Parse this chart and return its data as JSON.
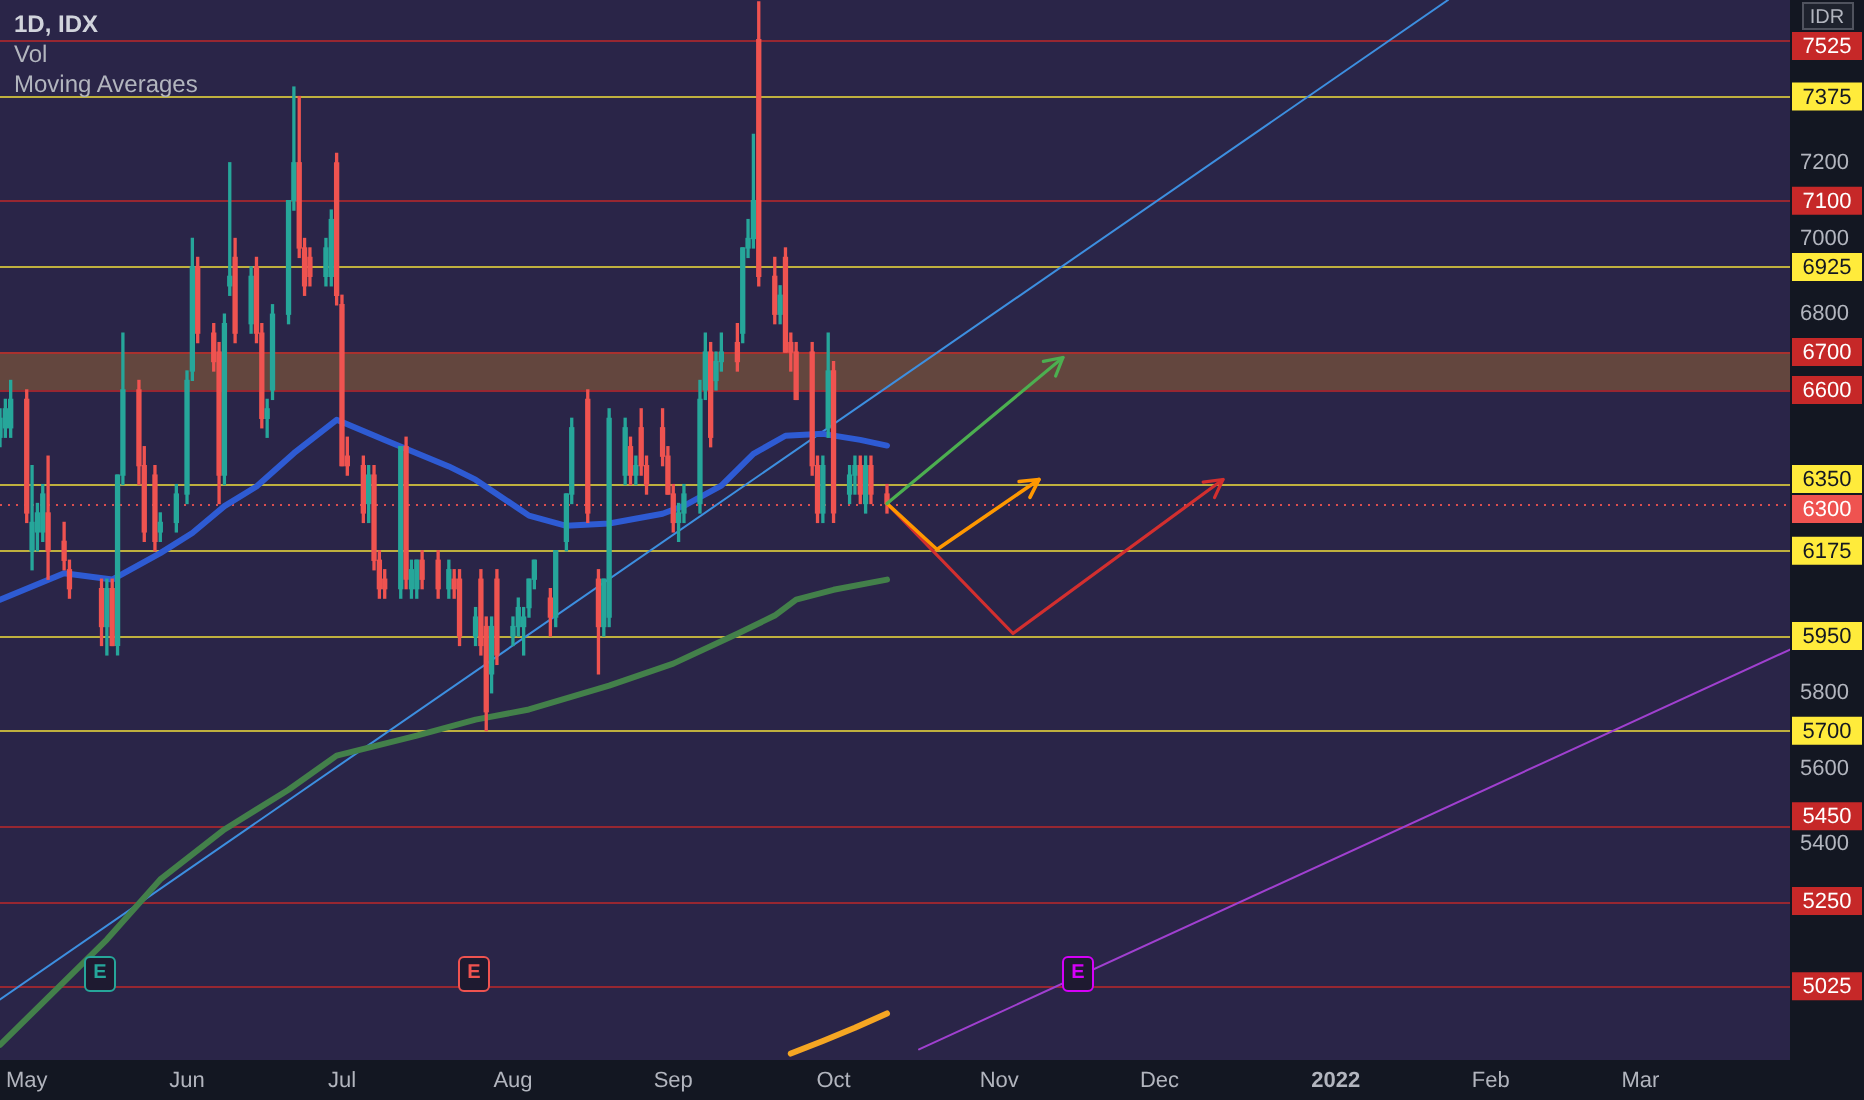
{
  "chart_data": {
    "type": "candlestick",
    "title": "1D, IDX",
    "ylabel": "IDR",
    "annotations": [
      "Vol",
      "Moving Averages",
      {
        "text": "E",
        "x": "2021-05-17"
      },
      {
        "text": "E",
        "x": "2021-07-26"
      },
      {
        "text": "E",
        "x": "2021-11-16"
      }
    ],
    "x": [
      "2021-04-28",
      "2021-04-29",
      "2021-04-30",
      "2021-05-03",
      "2021-05-04",
      "2021-05-05",
      "2021-05-06",
      "2021-05-07",
      "2021-05-10",
      "2021-05-11",
      "2021-05-17",
      "2021-05-18",
      "2021-05-19",
      "2021-05-20",
      "2021-05-21",
      "2021-05-24",
      "2021-05-25",
      "2021-05-27",
      "2021-05-28",
      "2021-05-31",
      "2021-06-02",
      "2021-06-03",
      "2021-06-04",
      "2021-06-07",
      "2021-06-08",
      "2021-06-09",
      "2021-06-10",
      "2021-06-11",
      "2021-06-14",
      "2021-06-15",
      "2021-06-16",
      "2021-06-17",
      "2021-06-18",
      "2021-06-21",
      "2021-06-22",
      "2021-06-23",
      "2021-06-24",
      "2021-06-25",
      "2021-06-28",
      "2021-06-29",
      "2021-06-30",
      "2021-07-01",
      "2021-07-02",
      "2021-07-05",
      "2021-07-06",
      "2021-07-07",
      "2021-07-08",
      "2021-07-09",
      "2021-07-12",
      "2021-07-13",
      "2021-07-14",
      "2021-07-15",
      "2021-07-16",
      "2021-07-19",
      "2021-07-21",
      "2021-07-22",
      "2021-07-23",
      "2021-07-26",
      "2021-07-27",
      "2021-07-28",
      "2021-07-29",
      "2021-07-30",
      "2021-08-02",
      "2021-08-03",
      "2021-08-04",
      "2021-08-05",
      "2021-08-06",
      "2021-08-09",
      "2021-08-10",
      "2021-08-12",
      "2021-08-13",
      "2021-08-16",
      "2021-08-18",
      "2021-08-19",
      "2021-08-20",
      "2021-08-23",
      "2021-08-24",
      "2021-08-25",
      "2021-08-26",
      "2021-08-27",
      "2021-08-30",
      "2021-08-31",
      "2021-09-01",
      "2021-09-02",
      "2021-09-03",
      "2021-09-06",
      "2021-09-07",
      "2021-09-08",
      "2021-09-09",
      "2021-09-10",
      "2021-09-13",
      "2021-09-14",
      "2021-09-15",
      "2021-09-16",
      "2021-09-17",
      "2021-09-20",
      "2021-09-21",
      "2021-09-22",
      "2021-09-23",
      "2021-09-24",
      "2021-09-27",
      "2021-09-28",
      "2021-09-29",
      "2021-09-30",
      "2021-10-01",
      "2021-10-04",
      "2021-10-05",
      "2021-10-06",
      "2021-10-07",
      "2021-10-08",
      "2021-10-11"
    ],
    "ohlc": [
      [
        6475,
        6550,
        6450,
        6525
      ],
      [
        6500,
        6575,
        6475,
        6550
      ],
      [
        6500,
        6625,
        6475,
        6575
      ],
      [
        6575,
        6600,
        6250,
        6275
      ],
      [
        6175,
        6400,
        6125,
        6250
      ],
      [
        6225,
        6300,
        6175,
        6275
      ],
      [
        6225,
        6350,
        6200,
        6325
      ],
      [
        6275,
        6425,
        6100,
        6175
      ],
      [
        6200,
        6250,
        6125,
        6150
      ],
      [
        6125,
        6150,
        6050,
        6075
      ],
      [
        6075,
        6100,
        5925,
        5975
      ],
      [
        5975,
        6100,
        5900,
        6075
      ],
      [
        6075,
        6100,
        5925,
        5925
      ],
      [
        5925,
        6375,
        5900,
        6375
      ],
      [
        6375,
        6750,
        6350,
        6600
      ],
      [
        6600,
        6625,
        6350,
        6400
      ],
      [
        6400,
        6450,
        6200,
        6225
      ],
      [
        6375,
        6400,
        6175,
        6200
      ],
      [
        6225,
        6275,
        6200,
        6250
      ],
      [
        6250,
        6350,
        6225,
        6325
      ],
      [
        6325,
        6650,
        6300,
        6625
      ],
      [
        6650,
        7000,
        6625,
        6925
      ],
      [
        6925,
        6950,
        6725,
        6750
      ],
      [
        6750,
        6775,
        6650,
        6675
      ],
      [
        6700,
        6725,
        6300,
        6375
      ],
      [
        6375,
        6800,
        6350,
        6775
      ],
      [
        6875,
        7200,
        6850,
        6900
      ],
      [
        6950,
        7000,
        6725,
        6750
      ],
      [
        6775,
        6925,
        6750,
        6900
      ],
      [
        6925,
        6950,
        6725,
        6750
      ],
      [
        6750,
        6775,
        6500,
        6525
      ],
      [
        6525,
        6575,
        6475,
        6550
      ],
      [
        6600,
        6825,
        6575,
        6800
      ],
      [
        6800,
        7100,
        6775,
        7100
      ],
      [
        7100,
        7400,
        7075,
        7200
      ],
      [
        7200,
        7375,
        6950,
        6975
      ],
      [
        6975,
        7000,
        6850,
        6875
      ],
      [
        6950,
        6975,
        6875,
        6900
      ],
      [
        6900,
        7000,
        6875,
        6975
      ],
      [
        6900,
        7075,
        6875,
        7050
      ],
      [
        7200,
        7225,
        6825,
        6850
      ],
      [
        6825,
        6850,
        6400,
        6400
      ],
      [
        6425,
        6475,
        6375,
        6400
      ],
      [
        6400,
        6425,
        6250,
        6275
      ],
      [
        6300,
        6400,
        6250,
        6375
      ],
      [
        6375,
        6400,
        6125,
        6150
      ],
      [
        6150,
        6175,
        6050,
        6075
      ],
      [
        6100,
        6125,
        6050,
        6075
      ],
      [
        6075,
        6450,
        6050,
        6450
      ],
      [
        6450,
        6475,
        6075,
        6100
      ],
      [
        6075,
        6150,
        6050,
        6125
      ],
      [
        6075,
        6150,
        6050,
        6150
      ],
      [
        6150,
        6175,
        6075,
        6100
      ],
      [
        6150,
        6175,
        6050,
        6075
      ],
      [
        6075,
        6150,
        6050,
        6125
      ],
      [
        6100,
        6125,
        6050,
        6075
      ],
      [
        6100,
        6125,
        5925,
        5950
      ],
      [
        5950,
        6025,
        5925,
        6000
      ],
      [
        6100,
        6125,
        5900,
        5925
      ],
      [
        5975,
        6000,
        5700,
        5750
      ],
      [
        5850,
        6000,
        5800,
        5975
      ],
      [
        6100,
        6125,
        5875,
        5900
      ],
      [
        5950,
        6000,
        5925,
        5975
      ],
      [
        5975,
        6050,
        5950,
        6025
      ],
      [
        5975,
        6025,
        5900,
        6000
      ],
      [
        6025,
        6100,
        6000,
        6100
      ],
      [
        6100,
        6150,
        6075,
        6150
      ],
      [
        6050,
        6075,
        5950,
        6000
      ],
      [
        6000,
        6175,
        5975,
        6175
      ],
      [
        6200,
        6325,
        6175,
        6325
      ],
      [
        6325,
        6525,
        6300,
        6500
      ],
      [
        6575,
        6600,
        6250,
        6275
      ],
      [
        6100,
        6125,
        5850,
        5975
      ],
      [
        5975,
        6100,
        5950,
        6100
      ],
      [
        6000,
        6550,
        5975,
        6525
      ],
      [
        6375,
        6525,
        6350,
        6500
      ],
      [
        6450,
        6475,
        6350,
        6375
      ],
      [
        6375,
        6425,
        6350,
        6400
      ],
      [
        6500,
        6550,
        6375,
        6400
      ],
      [
        6400,
        6425,
        6325,
        6350
      ],
      [
        6500,
        6550,
        6400,
        6425
      ],
      [
        6425,
        6450,
        6325,
        6325
      ],
      [
        6325,
        6350,
        6225,
        6250
      ],
      [
        6250,
        6300,
        6200,
        6275
      ],
      [
        6275,
        6350,
        6250,
        6325
      ],
      [
        6300,
        6625,
        6275,
        6575
      ],
      [
        6600,
        6750,
        6575,
        6700
      ],
      [
        6700,
        6725,
        6450,
        6475
      ],
      [
        6625,
        6700,
        6600,
        6675
      ],
      [
        6675,
        6750,
        6650,
        6700
      ],
      [
        6725,
        6775,
        6650,
        6675
      ],
      [
        6750,
        6975,
        6725,
        6975
      ],
      [
        6975,
        7050,
        6950,
        7000
      ],
      [
        7000,
        7275,
        6975,
        7100
      ],
      [
        7525,
        7625,
        6875,
        6900
      ],
      [
        6900,
        6950,
        6775,
        6800
      ],
      [
        6800,
        6875,
        6775,
        6850
      ],
      [
        6950,
        6975,
        6700,
        6700
      ],
      [
        6725,
        6750,
        6650,
        6700
      ],
      [
        6700,
        6725,
        6575,
        6575
      ],
      [
        6700,
        6725,
        6375,
        6400
      ],
      [
        6400,
        6425,
        6250,
        6275
      ],
      [
        6275,
        6425,
        6250,
        6400
      ],
      [
        6500,
        6750,
        6475,
        6650
      ],
      [
        6650,
        6675,
        6250,
        6275
      ],
      [
        6325,
        6400,
        6300,
        6375
      ],
      [
        6375,
        6425,
        6325,
        6400
      ],
      [
        6400,
        6425,
        6300,
        6325
      ],
      [
        6300,
        6425,
        6275,
        6400
      ],
      [
        6400,
        6425,
        6300,
        6325
      ],
      [
        6325,
        6350,
        6275,
        6300
      ]
    ],
    "colors": [
      "#26a69a",
      "#26a69a",
      "#26a69a",
      "#ef5350",
      "#26a69a",
      "#26a69a",
      "#26a69a",
      "#ef5350",
      "#ef5350",
      "#ef5350",
      "#ef5350",
      "#26a69a",
      "#ef5350",
      "#26a69a",
      "#26a69a",
      "#ef5350",
      "#ef5350",
      "#ef5350",
      "#26a69a",
      "#26a69a",
      "#26a69a",
      "#26a69a",
      "#ef5350",
      "#ef5350",
      "#ef5350",
      "#26a69a",
      "#26a69a",
      "#ef5350",
      "#26a69a",
      "#ef5350",
      "#ef5350",
      "#26a69a",
      "#26a69a",
      "#26a69a",
      "#26a69a",
      "#ef5350",
      "#ef5350",
      "#ef5350",
      "#26a69a",
      "#26a69a",
      "#ef5350",
      "#ef5350",
      "#ef5350",
      "#ef5350",
      "#26a69a",
      "#ef5350",
      "#ef5350",
      "#ef5350",
      "#26a69a",
      "#ef5350",
      "#26a69a",
      "#26a69a",
      "#ef5350",
      "#ef5350",
      "#26a69a",
      "#ef5350",
      "#ef5350",
      "#26a69a",
      "#ef5350",
      "#ef5350",
      "#26a69a",
      "#ef5350",
      "#26a69a",
      "#26a69a",
      "#26a69a",
      "#26a69a",
      "#26a69a",
      "#ef5350",
      "#26a69a",
      "#26a69a",
      "#26a69a",
      "#ef5350",
      "#ef5350",
      "#26a69a",
      "#26a69a",
      "#26a69a",
      "#ef5350",
      "#26a69a",
      "#ef5350",
      "#ef5350",
      "#ef5350",
      "#ef5350",
      "#ef5350",
      "#26a69a",
      "#26a69a",
      "#26a69a",
      "#26a69a",
      "#ef5350",
      "#26a69a",
      "#26a69a",
      "#ef5350",
      "#26a69a",
      "#26a69a",
      "#26a69a",
      "#ef5350",
      "#ef5350",
      "#26a69a",
      "#ef5350",
      "#ef5350",
      "#ef5350",
      "#ef5350",
      "#ef5350",
      "#26a69a",
      "#26a69a",
      "#ef5350",
      "#26a69a",
      "#26a69a",
      "#ef5350",
      "#26a69a",
      "#ef5350",
      "#ef5350"
    ],
    "series": [
      {
        "type": "line",
        "color": "#2e5bd3",
        "x": [
          "2021-04-28",
          "2021-05-10",
          "2021-05-19",
          "2021-05-28",
          "2021-06-03",
          "2021-06-09",
          "2021-06-15",
          "2021-06-22",
          "2021-06-30",
          "2021-07-09",
          "2021-07-21",
          "2021-07-26",
          "2021-08-05",
          "2021-08-12",
          "2021-08-20",
          "2021-08-30",
          "2021-09-03",
          "2021-09-10",
          "2021-09-16",
          "2021-09-22",
          "2021-09-29",
          "2021-10-06",
          "2021-10-11"
        ],
        "values": [
          6046,
          6116,
          6099,
          6169,
          6222,
          6293,
          6345,
          6433,
          6521,
          6468,
          6398,
          6363,
          6268,
          6241,
          6247,
          6273,
          6294,
          6347,
          6431,
          6479,
          6484,
          6468,
          6453
        ]
      },
      {
        "type": "line",
        "color": "#43804a",
        "x": [
          "2021-04-28",
          "2021-05-18",
          "2021-05-28",
          "2021-06-09",
          "2021-06-21",
          "2021-06-30",
          "2021-07-15",
          "2021-07-26",
          "2021-08-05",
          "2021-08-20",
          "2021-09-01",
          "2021-09-13",
          "2021-09-20",
          "2021-09-24",
          "2021-10-01",
          "2021-10-11"
        ],
        "values": [
          4870,
          5148,
          5307,
          5439,
          5544,
          5634,
          5687,
          5729,
          5756,
          5819,
          5877,
          5956,
          6004,
          6046,
          6072,
          6099
        ]
      },
      {
        "type": "line",
        "color": "#f5a623",
        "x": [
          "2021-09-23",
          "2021-09-29",
          "2021-10-05",
          "2021-10-11"
        ],
        "values": [
          4847,
          4880,
          4915,
          4953
        ]
      },
      {
        "type": "line",
        "color": "#3d8fe0",
        "x": [
          "2021-04-28",
          "2022-01-24"
        ],
        "values": [
          4990,
          7630
        ]
      },
      {
        "type": "line",
        "color": "#a040d0",
        "x": [
          "2021-10-17",
          "2022-03-29"
        ],
        "values": [
          4858,
          5914
        ]
      }
    ],
    "xlim": [
      "2021-04-28",
      "2022-03-29"
    ],
    "xticks": [
      {
        "value": "2021-05-03",
        "label": "May"
      },
      {
        "value": "2021-06-02",
        "label": "Jun"
      },
      {
        "value": "2021-07-01",
        "label": "Jul"
      },
      {
        "value": "2021-08-02",
        "label": "Aug"
      },
      {
        "value": "2021-09-01",
        "label": "Sep"
      },
      {
        "value": "2021-10-01",
        "label": "Oct"
      },
      {
        "value": "2021-11-01",
        "label": "Nov"
      },
      {
        "value": "2021-12-01",
        "label": "Dec"
      },
      {
        "value": "2022-01-03",
        "label": "2022"
      },
      {
        "value": "2022-02-01",
        "label": "Feb"
      },
      {
        "value": "2022-03-01",
        "label": "Mar"
      }
    ],
    "ylim": [
      4830,
      7630
    ],
    "yticks": [
      5400,
      5600,
      5800,
      6800,
      7000,
      7200
    ],
    "ref_lines": [
      {
        "axis": "y",
        "value": 7525,
        "label": "7525",
        "color": "#c62828"
      },
      {
        "axis": "y",
        "value": 7375,
        "label": "7375",
        "color": "#ffeb3b"
      },
      {
        "axis": "y",
        "value": 7100,
        "label": "7100",
        "color": "#c62828"
      },
      {
        "axis": "y",
        "value": 6925,
        "label": "6925",
        "color": "#ffeb3b"
      },
      {
        "axis": "y",
        "value": 6700,
        "label": "6700",
        "color": "#c62828"
      },
      {
        "axis": "y",
        "value": 6600,
        "label": "6600",
        "color": "#c62828"
      },
      {
        "axis": "y",
        "value": 6350,
        "label": "6350",
        "color": "#ffeb3b"
      },
      {
        "axis": "y",
        "value": 6300,
        "label": "6300",
        "color": "#ef5350",
        "line_style": "dotted"
      },
      {
        "axis": "y",
        "value": 6175,
        "label": "6175",
        "color": "#ffeb3b"
      },
      {
        "axis": "y",
        "value": 5950,
        "label": "5950",
        "color": "#ffeb3b"
      },
      {
        "axis": "y",
        "value": 5700,
        "label": "5700",
        "color": "#ffeb3b"
      },
      {
        "axis": "y",
        "value": 5450,
        "label": "5450",
        "color": "#c62828"
      },
      {
        "axis": "y",
        "value": 5250,
        "label": "5250",
        "color": "#c62828"
      },
      {
        "axis": "y",
        "value": 5025,
        "label": "5025",
        "color": "#c62828"
      }
    ],
    "bands": [
      {
        "axis": "y",
        "from": 6600,
        "to": 6700,
        "color": "#6d4c3d"
      }
    ],
    "marker": "none"
  }
}
